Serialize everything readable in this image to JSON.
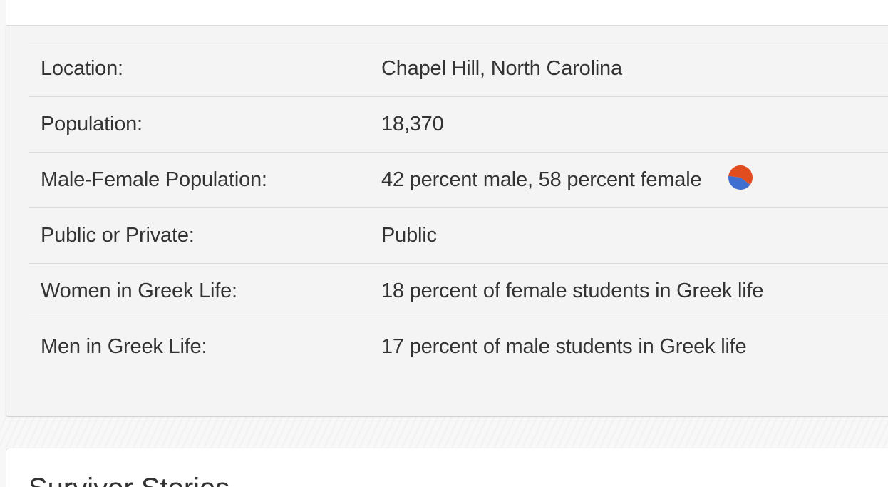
{
  "stats": {
    "rows": [
      {
        "label": "Location:",
        "value": "Chapel Hill, North Carolina"
      },
      {
        "label": "Population:",
        "value": "18,370"
      },
      {
        "label": "Male-Female Population:",
        "value": "42 percent male, 58 percent female"
      },
      {
        "label": "Public or Private:",
        "value": "Public"
      },
      {
        "label": "Women in Greek Life:",
        "value": "18 percent of female students in Greek life"
      },
      {
        "label": "Men in Greek Life:",
        "value": "17 percent of male students in Greek life"
      }
    ],
    "gender_pie": {
      "male_percent": 42,
      "female_percent": 58,
      "male_color": "#3f6fd1",
      "female_color": "#e24d1f"
    }
  },
  "stories": {
    "title": "Survivor Stories"
  }
}
